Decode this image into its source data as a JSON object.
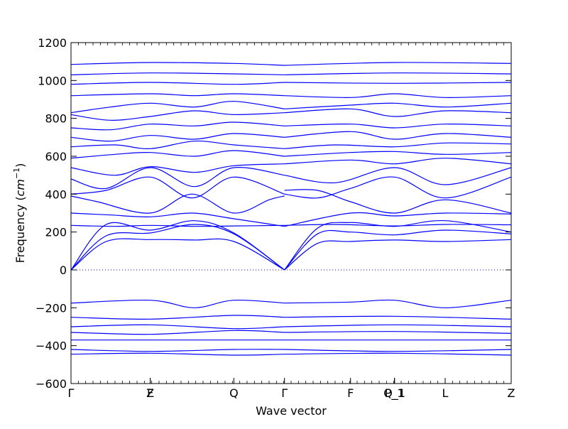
{
  "chart_data": {
    "type": "line",
    "title": "",
    "xlabel": "Wave vector",
    "ylabel": "Frequency (cm⁻¹)",
    "ylabel_parts": {
      "text": "Frequency (",
      "unit": "cm",
      "exp": "−1",
      "close": ")"
    },
    "ylim": [
      -600,
      1200
    ],
    "yticks": [
      -600,
      -400,
      -200,
      0,
      200,
      400,
      600,
      800,
      1000,
      1200
    ],
    "ytick_labels": [
      "−600",
      "−400",
      "−200",
      "0",
      "200",
      "400",
      "600",
      "800",
      "1000",
      "1200"
    ],
    "x_symmetry_points": [
      {
        "label": "Γ",
        "position": 0.0
      },
      {
        "label": "Z",
        "position": 0.18
      },
      {
        "label": "F",
        "position": 0.18
      },
      {
        "label": "Q",
        "position": 0.37
      },
      {
        "label": "Γ",
        "position": 0.485
      },
      {
        "label": "F",
        "position": 0.635
      },
      {
        "label": "P_1",
        "position": 0.735
      },
      {
        "label": "Q_1",
        "position": 0.735
      },
      {
        "label": "L",
        "position": 0.85
      },
      {
        "label": "Z",
        "position": 1.0
      }
    ],
    "grid": false,
    "legend": "none",
    "line_color": "#0000ff",
    "zero_line": {
      "y": 0,
      "style": "dotted"
    },
    "series": [
      {
        "x": [
          0,
          0.08,
          0.18,
          0.28,
          0.37,
          0.485
        ],
        "values": [
          0,
          150,
          160,
          158,
          150,
          0
        ]
      },
      {
        "x": [
          0,
          0.08,
          0.18,
          0.28,
          0.37,
          0.485
        ],
        "values": [
          0,
          180,
          195,
          240,
          190,
          0
        ]
      },
      {
        "x": [
          0,
          0.08,
          0.18,
          0.28,
          0.37,
          0.485
        ],
        "values": [
          0,
          240,
          210,
          260,
          195,
          0
        ]
      },
      {
        "x": [
          0.485,
          0.56,
          0.635,
          0.735,
          0.85,
          1.0
        ],
        "values": [
          0,
          140,
          150,
          158,
          150,
          160
        ]
      },
      {
        "x": [
          0.485,
          0.56,
          0.635,
          0.735,
          0.85,
          1.0
        ],
        "values": [
          0,
          190,
          200,
          185,
          210,
          190
        ]
      },
      {
        "x": [
          0.485,
          0.56,
          0.635,
          0.735,
          0.85,
          1.0
        ],
        "values": [
          0,
          220,
          250,
          230,
          260,
          200
        ]
      },
      {
        "x": [
          0,
          0.1,
          0.18,
          0.28,
          0.37,
          0.485
        ],
        "values": [
          235,
          230,
          235,
          230,
          232,
          235
        ]
      },
      {
        "x": [
          0.485,
          0.6,
          0.735,
          0.85,
          1.0
        ],
        "values": [
          235,
          240,
          232,
          240,
          238
        ]
      },
      {
        "x": [
          0,
          0.09,
          0.18,
          0.275,
          0.37,
          0.485
        ],
        "values": [
          300,
          290,
          280,
          300,
          270,
          230
        ]
      },
      {
        "x": [
          0.485,
          0.635,
          0.735,
          0.85,
          1.0
        ],
        "values": [
          230,
          300,
          285,
          300,
          295
        ]
      },
      {
        "x": [
          0,
          0.06,
          0.18,
          0.275,
          0.37,
          0.45,
          0.485
        ],
        "values": [
          390,
          360,
          300,
          400,
          300,
          370,
          390
        ]
      },
      {
        "x": [
          0,
          0.08,
          0.18,
          0.275,
          0.37,
          0.485
        ],
        "values": [
          400,
          420,
          490,
          380,
          490,
          400
        ]
      },
      {
        "x": [
          0.485,
          0.56,
          0.635,
          0.735,
          0.85,
          1.0
        ],
        "values": [
          400,
          380,
          430,
          490,
          380,
          490
        ]
      },
      {
        "x": [
          0.485,
          0.56,
          0.635,
          0.735,
          0.85,
          1.0
        ],
        "values": [
          420,
          420,
          360,
          300,
          370,
          300
        ]
      },
      {
        "x": [
          0,
          0.08,
          0.18,
          0.28,
          0.37,
          0.485
        ],
        "values": [
          480,
          430,
          540,
          440,
          540,
          500
        ]
      },
      {
        "x": [
          0.485,
          0.6,
          0.735,
          0.85,
          1.0
        ],
        "values": [
          500,
          460,
          540,
          450,
          540
        ]
      },
      {
        "x": [
          0,
          0.1,
          0.18,
          0.28,
          0.37,
          0.485
        ],
        "values": [
          540,
          500,
          545,
          515,
          550,
          560
        ]
      },
      {
        "x": [
          0.485,
          0.635,
          0.735,
          0.85,
          1.0
        ],
        "values": [
          560,
          580,
          560,
          590,
          560
        ]
      },
      {
        "x": [
          0,
          0.1,
          0.18,
          0.28,
          0.37,
          0.485
        ],
        "values": [
          590,
          610,
          620,
          600,
          630,
          600
        ]
      },
      {
        "x": [
          0.485,
          0.635,
          0.735,
          0.85,
          1.0
        ],
        "values": [
          600,
          620,
          625,
          610,
          620
        ]
      },
      {
        "x": [
          0,
          0.1,
          0.18,
          0.28,
          0.37,
          0.485
        ],
        "values": [
          650,
          660,
          640,
          680,
          660,
          640
        ]
      },
      {
        "x": [
          0.485,
          0.6,
          0.735,
          0.85,
          1.0
        ],
        "values": [
          640,
          660,
          650,
          670,
          665
        ]
      },
      {
        "x": [
          0,
          0.09,
          0.18,
          0.28,
          0.37,
          0.485
        ],
        "values": [
          700,
          680,
          710,
          690,
          720,
          700
        ]
      },
      {
        "x": [
          0.485,
          0.635,
          0.735,
          0.85,
          1.0
        ],
        "values": [
          700,
          730,
          690,
          720,
          700
        ]
      },
      {
        "x": [
          0,
          0.09,
          0.18,
          0.28,
          0.37,
          0.485
        ],
        "values": [
          750,
          740,
          770,
          760,
          780,
          760
        ]
      },
      {
        "x": [
          0.485,
          0.635,
          0.735,
          0.85,
          1.0
        ],
        "values": [
          760,
          770,
          750,
          770,
          760
        ]
      },
      {
        "x": [
          0,
          0.09,
          0.18,
          0.28,
          0.37,
          0.485
        ],
        "values": [
          820,
          790,
          810,
          840,
          820,
          830
        ]
      },
      {
        "x": [
          0.485,
          0.635,
          0.735,
          0.85,
          1.0
        ],
        "values": [
          830,
          850,
          810,
          840,
          830
        ]
      },
      {
        "x": [
          0,
          0.09,
          0.18,
          0.28,
          0.37,
          0.485
        ],
        "values": [
          830,
          860,
          880,
          860,
          890,
          850
        ]
      },
      {
        "x": [
          0.485,
          0.635,
          0.735,
          0.85,
          1.0
        ],
        "values": [
          850,
          870,
          880,
          860,
          880
        ]
      },
      {
        "x": [
          0,
          0.18,
          0.28,
          0.37,
          0.485
        ],
        "values": [
          920,
          930,
          920,
          930,
          920
        ]
      },
      {
        "x": [
          0.485,
          0.635,
          0.735,
          0.85,
          1.0
        ],
        "values": [
          920,
          910,
          930,
          910,
          920
        ]
      },
      {
        "x": [
          0,
          0.18,
          0.37,
          0.485
        ],
        "values": [
          980,
          990,
          980,
          990
        ]
      },
      {
        "x": [
          0.485,
          0.735,
          1.0
        ],
        "values": [
          990,
          985,
          990
        ]
      },
      {
        "x": [
          0,
          0.18,
          0.37,
          0.485
        ],
        "values": [
          1030,
          1040,
          1035,
          1030
        ]
      },
      {
        "x": [
          0.485,
          0.735,
          1.0
        ],
        "values": [
          1030,
          1040,
          1035
        ]
      },
      {
        "x": [
          0,
          0.18,
          0.37,
          0.485
        ],
        "values": [
          1085,
          1095,
          1090,
          1080
        ]
      },
      {
        "x": [
          0.485,
          0.735,
          1.0
        ],
        "values": [
          1080,
          1095,
          1090
        ]
      },
      {
        "x": [
          0,
          0.18,
          0.28,
          0.37,
          0.485
        ],
        "values": [
          -175,
          -160,
          -200,
          -160,
          -175
        ]
      },
      {
        "x": [
          0.485,
          0.635,
          0.735,
          0.85,
          1.0
        ],
        "values": [
          -175,
          -170,
          -160,
          -200,
          -160
        ]
      },
      {
        "x": [
          0,
          0.18,
          0.37,
          0.485
        ],
        "values": [
          -250,
          -260,
          -240,
          -250
        ]
      },
      {
        "x": [
          0.485,
          0.735,
          1.0
        ],
        "values": [
          -250,
          -245,
          -260
        ]
      },
      {
        "x": [
          0,
          0.18,
          0.37,
          0.485
        ],
        "values": [
          -300,
          -290,
          -310,
          -300
        ]
      },
      {
        "x": [
          0.485,
          0.735,
          1.0
        ],
        "values": [
          -300,
          -290,
          -300
        ]
      },
      {
        "x": [
          0,
          0.18,
          0.37,
          0.485
        ],
        "values": [
          -330,
          -340,
          -320,
          -330
        ]
      },
      {
        "x": [
          0.485,
          0.735,
          1.0
        ],
        "values": [
          -330,
          -325,
          -335
        ]
      },
      {
        "x": [
          0,
          0.18,
          0.37,
          0.485
        ],
        "values": [
          -370,
          -370,
          -370,
          -370
        ]
      },
      {
        "x": [
          0.485,
          1.0
        ],
        "values": [
          -370,
          -370
        ]
      },
      {
        "x": [
          0,
          0.18,
          0.37,
          0.485
        ],
        "values": [
          -420,
          -430,
          -420,
          -420
        ]
      },
      {
        "x": [
          0.485,
          0.735,
          1.0
        ],
        "values": [
          -420,
          -430,
          -420
        ]
      },
      {
        "x": [
          0,
          0.18,
          0.37,
          0.485
        ],
        "values": [
          -445,
          -440,
          -450,
          -445
        ]
      },
      {
        "x": [
          0.485,
          0.735,
          1.0
        ],
        "values": [
          -445,
          -440,
          -450
        ]
      }
    ]
  }
}
